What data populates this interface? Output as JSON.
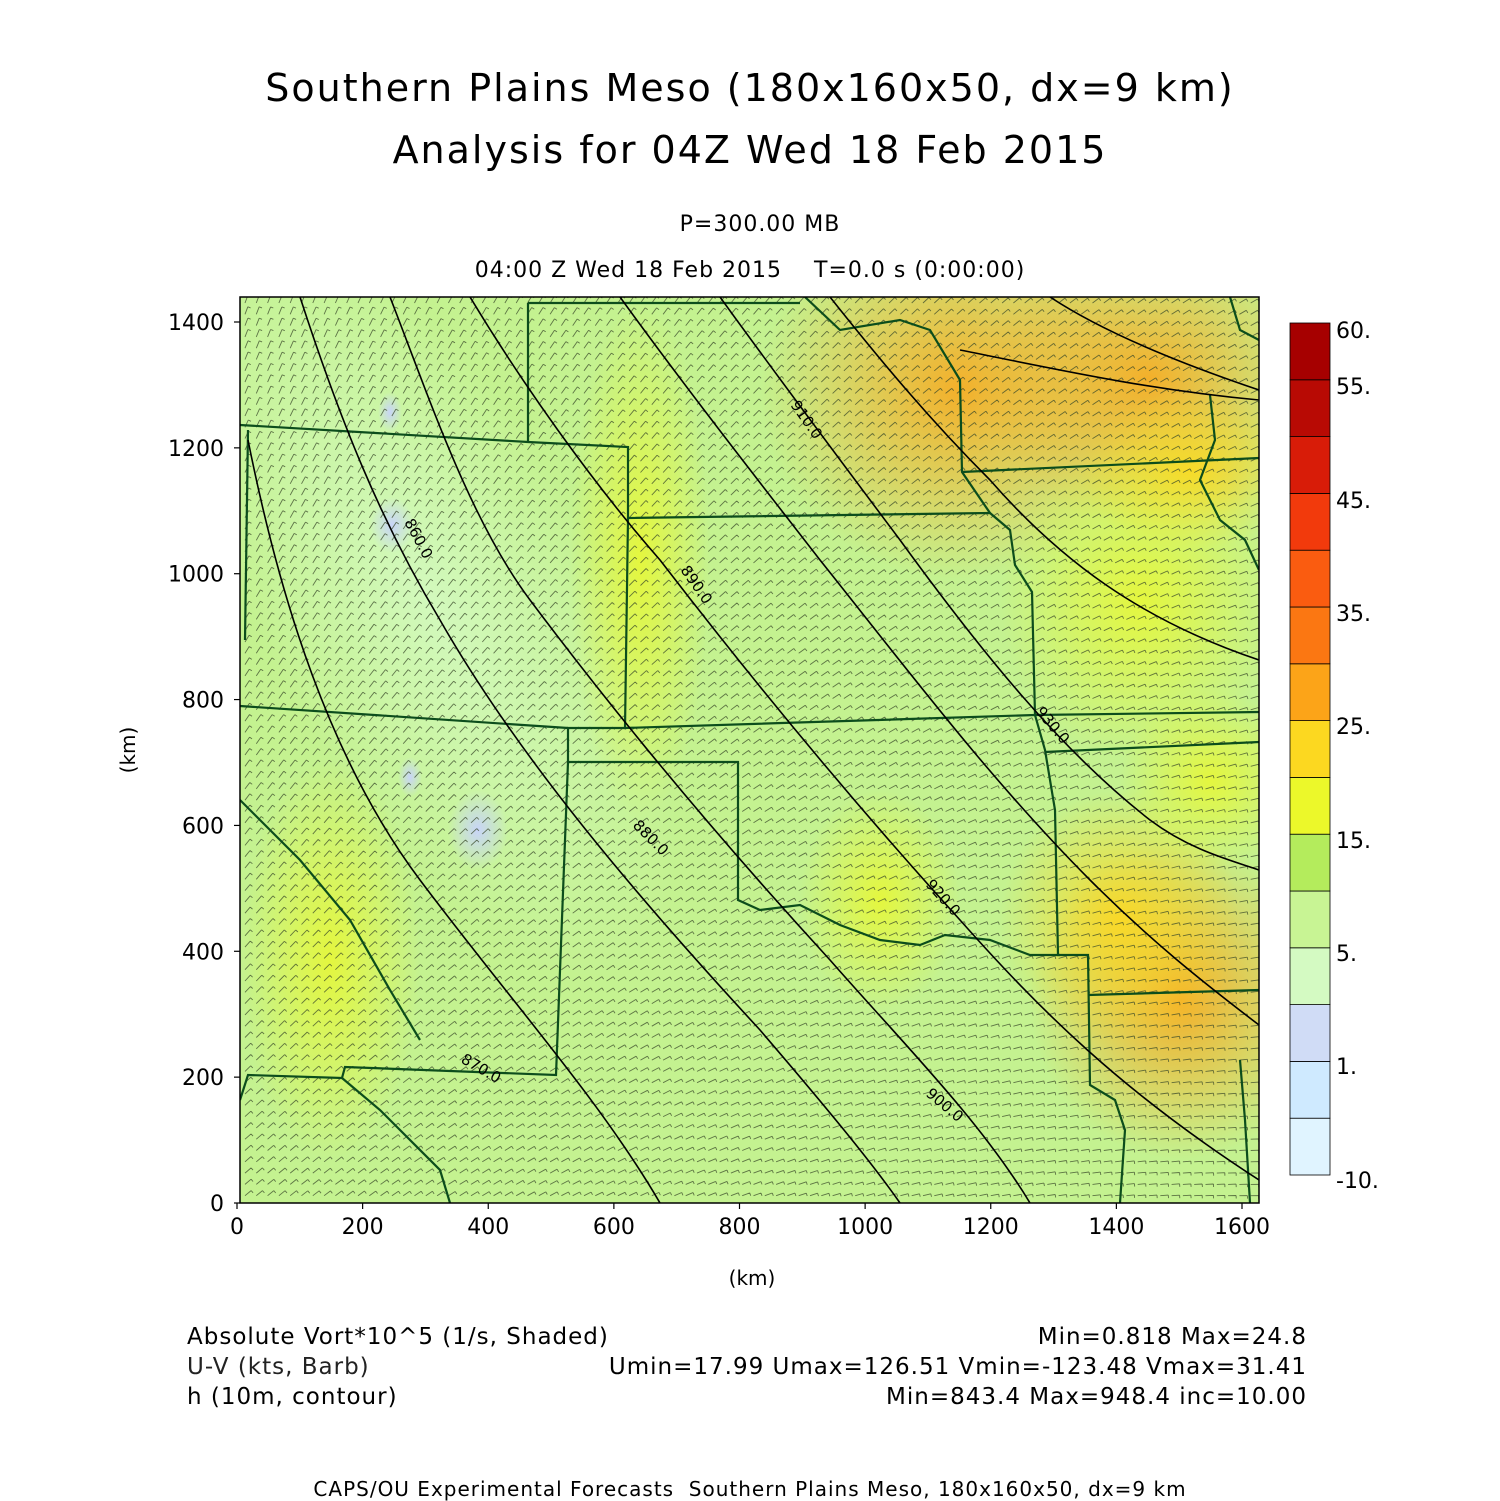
{
  "title": {
    "line1": "Southern Plains Meso (180x160x50, dx=9 km)",
    "line2": "Analysis for 04Z Wed 18 Feb 2015"
  },
  "level": "P=300.00 MB",
  "valid_time": "04:00 Z Wed 18 Feb 2015    T=0.0 s (0:00:00)",
  "axes": {
    "x_label": "(km)",
    "y_label": "(km)",
    "x_ticks": [
      0,
      200,
      400,
      600,
      800,
      1000,
      1200,
      1400,
      1600
    ],
    "y_ticks": [
      0,
      200,
      400,
      600,
      800,
      1000,
      1200,
      1400
    ],
    "x_range": [
      0,
      1620
    ],
    "y_range": [
      0,
      1440
    ]
  },
  "colorbar": {
    "labels": [
      "60.",
      "55.",
      "45.",
      "35.",
      "25.",
      "15.",
      "5.",
      "1.",
      "-10."
    ],
    "colors": [
      "#e0f4ff",
      "#cfeaff",
      "#d0dcf6",
      "#d4fac2",
      "#c8f494",
      "#b4ec5c",
      "#ecf82a",
      "#fcd820",
      "#fca418",
      "#fb7712",
      "#fa5c10",
      "#f23a0c",
      "#d81c08",
      "#b80a04",
      "#a60000"
    ]
  },
  "field_info": [
    {
      "left": "Absolute Vort*10^5 (1/s, Shaded)",
      "right": "Min=0.818 Max=24.8"
    },
    {
      "left": "U-V (kts, Barb)",
      "right": "Umin=17.99 Umax=126.51 Vmin=-123.48 Vmax=31.41"
    },
    {
      "left": "h (10m, contour)",
      "right": "Min=843.4 Max=948.4 inc=10.00"
    }
  ],
  "contour_labels": [
    "860.0",
    "870.0",
    "880.0",
    "890.0",
    "900.0",
    "910.0",
    "920.0",
    "930.0"
  ],
  "footer": "CAPS/OU Experimental Forecasts  Southern Plains Meso, 180x160x50, dx=9 km",
  "colors": {
    "background_field": "#c8f494",
    "state_borders": "#0c4d1c",
    "contours": "#000000",
    "barbs": "#3a4a2a"
  }
}
